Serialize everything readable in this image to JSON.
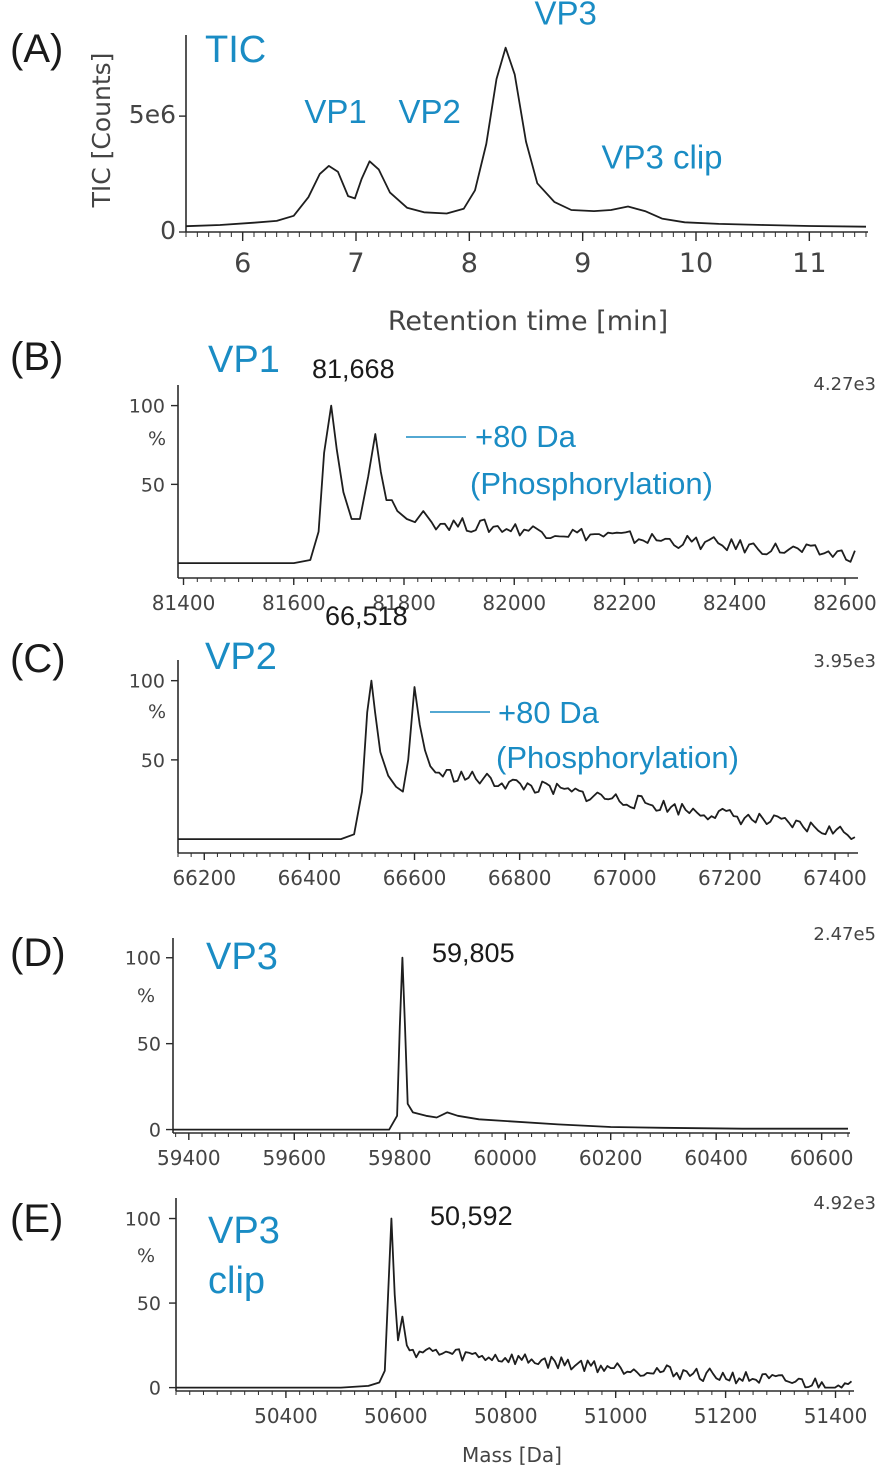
{
  "colors": {
    "label_blue": "#1a8cc4",
    "trace": "#1e1e1e",
    "axis": "#2b2b2b",
    "text": "#1a1a1a"
  },
  "chart_data": [
    {
      "type": "line",
      "panel": "(A)",
      "title": "TIC",
      "ylabel": "TIC [Counts]",
      "xlabel": "Retention time [min]",
      "xlim": [
        5.5,
        11.5
      ],
      "ylim": [
        0,
        8500000
      ],
      "x_ticks": [
        6,
        7,
        8,
        9,
        10,
        11
      ],
      "y_ticks": [
        {
          "value": 0,
          "label": "0"
        },
        {
          "value": 5000000,
          "label": "5e6"
        }
      ],
      "peaks": [
        {
          "name": "VP1",
          "x": 6.76,
          "y": 2850000,
          "label_x": 6.82,
          "label_y": 4700000
        },
        {
          "name": "VP2",
          "x": 7.12,
          "y": 3050000,
          "label_x": 7.65,
          "label_y": 4700000
        },
        {
          "name": "VP3",
          "x": 8.32,
          "y": 7950000,
          "label_x": 8.85,
          "label_y": 8950000
        },
        {
          "name": "VP3 clip",
          "x": 9.4,
          "y": 1100000,
          "label_x": 9.7,
          "label_y": 2750000
        }
      ],
      "baseline": [
        [
          5.5,
          250000
        ],
        [
          6.3,
          500000
        ],
        [
          7.6,
          800000
        ],
        [
          8.9,
          900000
        ],
        [
          10.0,
          400000
        ],
        [
          11.5,
          220000
        ]
      ],
      "series": [
        {
          "values": [
            [
              5.5,
              250000
            ],
            [
              5.8,
              300000
            ],
            [
              6.1,
              400000
            ],
            [
              6.3,
              480000
            ],
            [
              6.45,
              700000
            ],
            [
              6.58,
              1500000
            ],
            [
              6.68,
              2500000
            ],
            [
              6.76,
              2850000
            ],
            [
              6.84,
              2600000
            ],
            [
              6.93,
              1550000
            ],
            [
              6.99,
              1450000
            ],
            [
              7.05,
              2300000
            ],
            [
              7.12,
              3050000
            ],
            [
              7.2,
              2700000
            ],
            [
              7.3,
              1700000
            ],
            [
              7.45,
              1050000
            ],
            [
              7.6,
              850000
            ],
            [
              7.8,
              800000
            ],
            [
              7.95,
              1000000
            ],
            [
              8.05,
              1800000
            ],
            [
              8.15,
              3800000
            ],
            [
              8.24,
              6600000
            ],
            [
              8.32,
              7950000
            ],
            [
              8.4,
              6800000
            ],
            [
              8.5,
              3900000
            ],
            [
              8.6,
              2100000
            ],
            [
              8.75,
              1300000
            ],
            [
              8.9,
              950000
            ],
            [
              9.1,
              900000
            ],
            [
              9.25,
              950000
            ],
            [
              9.4,
              1100000
            ],
            [
              9.55,
              900000
            ],
            [
              9.7,
              580000
            ],
            [
              9.9,
              420000
            ],
            [
              10.2,
              350000
            ],
            [
              10.6,
              300000
            ],
            [
              11.0,
              260000
            ],
            [
              11.5,
              230000
            ]
          ]
        }
      ]
    },
    {
      "type": "line",
      "panel": "(B)",
      "title": "VP1",
      "peak_label": "81,668",
      "scale": "4.27e3",
      "annotation_line1": "+80 Da",
      "annotation_line2": "(Phosphorylation)",
      "y_unit": "%",
      "xlim": [
        81390,
        82620
      ],
      "ylim": [
        -5,
        108
      ],
      "x_ticks": [
        81400,
        81600,
        81800,
        82000,
        82200,
        82400,
        82600
      ],
      "y_ticks": [
        {
          "value": 50,
          "label": "50"
        },
        {
          "value": 100,
          "label": "100"
        }
      ],
      "peaks": [
        {
          "x": 81668,
          "y": 100
        },
        {
          "x": 81748,
          "y": 82
        },
        {
          "x": 81778,
          "y": 40
        },
        {
          "x": 81835,
          "y": 33
        }
      ],
      "noise": {
        "start": 81850,
        "end": 82620,
        "base_start": 26,
        "base_end": 5,
        "amp": 4.5,
        "period": 16
      },
      "series": [
        {
          "values": [
            [
              81390,
              0
            ],
            [
              81450,
              0
            ],
            [
              81500,
              0
            ],
            [
              81550,
              0
            ],
            [
              81600,
              0
            ],
            [
              81630,
              2
            ],
            [
              81645,
              20
            ],
            [
              81655,
              70
            ],
            [
              81668,
              100
            ],
            [
              81678,
              72
            ],
            [
              81690,
              45
            ],
            [
              81705,
              28
            ],
            [
              81720,
              28
            ],
            [
              81735,
              55
            ],
            [
              81748,
              82
            ],
            [
              81758,
              58
            ],
            [
              81768,
              40
            ],
            [
              81778,
              40
            ],
            [
              81788,
              33
            ],
            [
              81805,
              28
            ],
            [
              81820,
              26
            ],
            [
              81835,
              33
            ],
            [
              81850,
              26
            ]
          ]
        }
      ]
    },
    {
      "type": "line",
      "panel": "(C)",
      "title": "VP2",
      "peak_label": "66,518",
      "scale": "3.95e3",
      "annotation_line1": "+80 Da",
      "annotation_line2": "(Phosphorylation)",
      "y_unit": "%",
      "xlim": [
        66150,
        67440
      ],
      "ylim": [
        -5,
        108
      ],
      "x_ticks": [
        66200,
        66400,
        66600,
        66800,
        67000,
        67200,
        67400
      ],
      "y_ticks": [
        {
          "value": 50,
          "label": "50"
        },
        {
          "value": 100,
          "label": "100"
        }
      ],
      "peaks": [
        {
          "x": 66518,
          "y": 100
        },
        {
          "x": 66600,
          "y": 96
        },
        {
          "x": 66700,
          "y": 56
        },
        {
          "x": 66675,
          "y": 46
        }
      ],
      "noise": {
        "start": 66640,
        "end": 67440,
        "base_start": 42,
        "base_end": 3,
        "amp": 4.5,
        "period": 14
      },
      "series": [
        {
          "values": [
            [
              66150,
              0
            ],
            [
              66200,
              0
            ],
            [
              66300,
              0
            ],
            [
              66400,
              0
            ],
            [
              66460,
              0
            ],
            [
              66485,
              3
            ],
            [
              66500,
              30
            ],
            [
              66510,
              80
            ],
            [
              66518,
              100
            ],
            [
              66525,
              80
            ],
            [
              66535,
              55
            ],
            [
              66550,
              40
            ],
            [
              66565,
              33
            ],
            [
              66578,
              30
            ],
            [
              66588,
              50
            ],
            [
              66600,
              96
            ],
            [
              66610,
              72
            ],
            [
              66620,
              56
            ],
            [
              66630,
              46
            ],
            [
              66640,
              42
            ]
          ]
        }
      ]
    },
    {
      "type": "line",
      "panel": "(D)",
      "title": "VP3",
      "peak_label": "59,805",
      "scale": "2.47e5",
      "y_unit": "%",
      "xlim": [
        59370,
        60650
      ],
      "ylim": [
        -2,
        108
      ],
      "x_ticks": [
        59400,
        59600,
        59800,
        60000,
        60200,
        60400,
        60600
      ],
      "y_ticks": [
        {
          "value": 0,
          "label": "0"
        },
        {
          "value": 50,
          "label": "50"
        },
        {
          "value": 100,
          "label": "100"
        }
      ],
      "peaks": [
        {
          "x": 59805,
          "y": 100
        }
      ],
      "series": [
        {
          "values": [
            [
              59370,
              0
            ],
            [
              59500,
              0
            ],
            [
              59700,
              0
            ],
            [
              59780,
              0
            ],
            [
              59795,
              8
            ],
            [
              59800,
              60
            ],
            [
              59805,
              100
            ],
            [
              59810,
              60
            ],
            [
              59815,
              15
            ],
            [
              59825,
              10
            ],
            [
              59850,
              8
            ],
            [
              59870,
              7
            ],
            [
              59890,
              10
            ],
            [
              59910,
              8
            ],
            [
              59950,
              6
            ],
            [
              60000,
              5
            ],
            [
              60100,
              3
            ],
            [
              60200,
              1.5
            ],
            [
              60300,
              1
            ],
            [
              60450,
              0.5
            ],
            [
              60650,
              0.5
            ]
          ]
        }
      ]
    },
    {
      "type": "line",
      "panel": "(E)",
      "title_line1": "VP3",
      "title_line2": "clip",
      "peak_label": "50,592",
      "scale": "4.92e3",
      "xlabel": "Mass [Da]",
      "y_unit": "%",
      "xlim": [
        50200,
        51430
      ],
      "ylim": [
        -2,
        108
      ],
      "x_ticks": [
        50400,
        50600,
        50800,
        51000,
        51200,
        51400
      ],
      "y_ticks": [
        {
          "value": 0,
          "label": "0"
        },
        {
          "value": 50,
          "label": "50"
        },
        {
          "value": 100,
          "label": "100"
        }
      ],
      "peaks": [
        {
          "x": 50592,
          "y": 100
        },
        {
          "x": 50612,
          "y": 42
        },
        {
          "x": 50662,
          "y": 32
        },
        {
          "x": 50705,
          "y": 33
        },
        {
          "x": 50760,
          "y": 25
        }
      ],
      "noise": {
        "start": 50625,
        "end": 51430,
        "base_start": 22,
        "base_end": 0.5,
        "amp": 4,
        "period": 12
      },
      "series": [
        {
          "values": [
            [
              50200,
              0
            ],
            [
              50300,
              0
            ],
            [
              50400,
              0
            ],
            [
              50500,
              0
            ],
            [
              50550,
              1
            ],
            [
              50570,
              3
            ],
            [
              50580,
              10
            ],
            [
              50586,
              55
            ],
            [
              50592,
              100
            ],
            [
              50598,
              55
            ],
            [
              50604,
              28
            ],
            [
              50612,
              42
            ],
            [
              50620,
              25
            ],
            [
              50625,
              22
            ]
          ]
        }
      ]
    }
  ]
}
